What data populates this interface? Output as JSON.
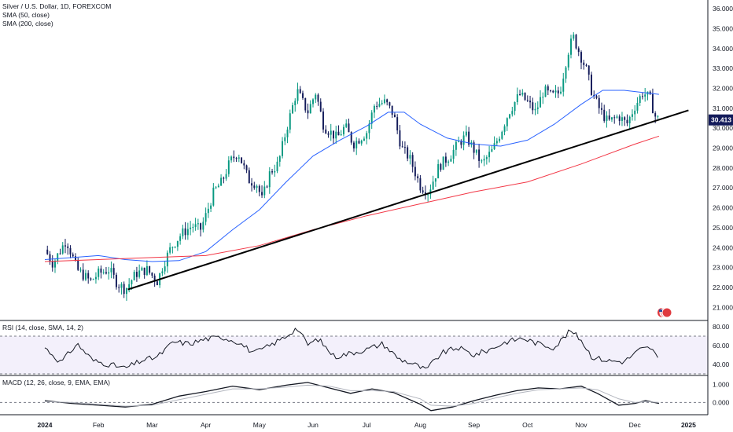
{
  "header": {
    "title": "Silver / U.S. Dollar, 1D, FOREXCOM",
    "sma50_label": "SMA (50, close)",
    "sma200_label": "SMA (200, close)"
  },
  "rsi_panel": {
    "label": "RSI (14, close, SMA, 14, 2)"
  },
  "macd_panel": {
    "label": "MACD (12, 26, close, 9, EMA, EMA)"
  },
  "last_price": "30.413",
  "colors": {
    "up": "#089981",
    "down": "#131b5a",
    "sma50": "#2962ff",
    "sma200": "#f23645",
    "trendline": "#000000",
    "last_price_bg": "#131b5a"
  },
  "icons": [
    "us-flag-icon"
  ],
  "chart_data": [
    {
      "type": "candlestick",
      "title": "Silver / U.S. Dollar, 1D, FOREXCOM",
      "y_ticks": [
        "36.000",
        "35.000",
        "34.000",
        "33.000",
        "32.000",
        "31.000",
        "30.000",
        "29.000",
        "28.000",
        "27.000",
        "26.000",
        "25.000",
        "24.000",
        "23.000",
        "22.000",
        "21.000"
      ],
      "ylim": [
        20.5,
        36.2
      ],
      "x_ticks": [
        "2024",
        "Feb",
        "Mar",
        "Apr",
        "May",
        "Jun",
        "Jul",
        "Aug",
        "Sep",
        "Oct",
        "Nov",
        "Dec",
        "2025"
      ],
      "x_tick_months": [
        0,
        1,
        2,
        3,
        4,
        5,
        6,
        7,
        8,
        9,
        10,
        11,
        12
      ],
      "last_value": 30.413,
      "close_path": [
        [
          0,
          23.9
        ],
        [
          0.15,
          23.2
        ],
        [
          0.4,
          24.4
        ],
        [
          0.6,
          22.9
        ],
        [
          0.85,
          22.3
        ],
        [
          1.0,
          22.7
        ],
        [
          1.2,
          22.9
        ],
        [
          1.35,
          22.2
        ],
        [
          1.5,
          21.9
        ],
        [
          1.7,
          22.7
        ],
        [
          1.9,
          22.9
        ],
        [
          2.1,
          22.3
        ],
        [
          2.2,
          23.1
        ],
        [
          2.35,
          24.0
        ],
        [
          2.55,
          24.7
        ],
        [
          2.75,
          25.1
        ],
        [
          2.9,
          24.9
        ],
        [
          3.0,
          25.6
        ],
        [
          3.15,
          26.8
        ],
        [
          3.3,
          27.3
        ],
        [
          3.45,
          28.3
        ],
        [
          3.6,
          28.8
        ],
        [
          3.8,
          27.4
        ],
        [
          3.95,
          27.2
        ],
        [
          4.05,
          26.4
        ],
        [
          4.2,
          27.8
        ],
        [
          4.35,
          28.2
        ],
        [
          4.5,
          29.9
        ],
        [
          4.7,
          31.9
        ],
        [
          4.9,
          30.8
        ],
        [
          5.05,
          31.8
        ],
        [
          5.2,
          30.1
        ],
        [
          5.45,
          29.5
        ],
        [
          5.6,
          30.1
        ],
        [
          5.75,
          29.2
        ],
        [
          6.0,
          29.8
        ],
        [
          6.15,
          31.2
        ],
        [
          6.35,
          31.3
        ],
        [
          6.5,
          30.7
        ],
        [
          6.65,
          29.0
        ],
        [
          6.8,
          28.5
        ],
        [
          7.0,
          27.1
        ],
        [
          7.15,
          26.8
        ],
        [
          7.35,
          28.1
        ],
        [
          7.55,
          28.6
        ],
        [
          7.7,
          29.2
        ],
        [
          7.85,
          29.6
        ],
        [
          8.0,
          28.9
        ],
        [
          8.15,
          28.2
        ],
        [
          8.35,
          28.9
        ],
        [
          8.5,
          29.8
        ],
        [
          8.65,
          30.8
        ],
        [
          8.85,
          31.7
        ],
        [
          9.0,
          31.3
        ],
        [
          9.15,
          30.8
        ],
        [
          9.3,
          31.9
        ],
        [
          9.45,
          31.6
        ],
        [
          9.6,
          31.8
        ],
        [
          9.75,
          33.8
        ],
        [
          9.85,
          34.6
        ],
        [
          9.95,
          33.9
        ],
        [
          10.1,
          32.9
        ],
        [
          10.2,
          31.8
        ],
        [
          10.35,
          30.9
        ],
        [
          10.5,
          30.3
        ],
        [
          10.7,
          30.6
        ],
        [
          10.85,
          30.2
        ],
        [
          11.0,
          31.1
        ],
        [
          11.15,
          31.8
        ],
        [
          11.28,
          31.5
        ],
        [
          11.38,
          30.6
        ],
        [
          11.45,
          30.413
        ]
      ],
      "series": [
        {
          "name": "SMA (50, close)",
          "color": "#2962ff",
          "points": [
            [
              0,
              23.4
            ],
            [
              1,
              23.6
            ],
            [
              1.5,
              23.4
            ],
            [
              2,
              23.3
            ],
            [
              2.5,
              23.35
            ],
            [
              3,
              23.8
            ],
            [
              3.5,
              24.9
            ],
            [
              4,
              25.9
            ],
            [
              4.5,
              27.3
            ],
            [
              5,
              28.6
            ],
            [
              5.5,
              29.4
            ],
            [
              6,
              30.1
            ],
            [
              6.4,
              30.8
            ],
            [
              6.7,
              30.8
            ],
            [
              7,
              30.2
            ],
            [
              7.5,
              29.5
            ],
            [
              8,
              29.2
            ],
            [
              8.5,
              29.1
            ],
            [
              9,
              29.4
            ],
            [
              9.5,
              30.2
            ],
            [
              10,
              31.2
            ],
            [
              10.4,
              31.9
            ],
            [
              10.8,
              31.9
            ],
            [
              11.45,
              31.7
            ]
          ]
        },
        {
          "name": "SMA (200, close)",
          "color": "#f23645",
          "points": [
            [
              0,
              23.3
            ],
            [
              1,
              23.4
            ],
            [
              2,
              23.5
            ],
            [
              3,
              23.6
            ],
            [
              4,
              24.1
            ],
            [
              5,
              24.9
            ],
            [
              6,
              25.6
            ],
            [
              7,
              26.2
            ],
            [
              8,
              26.8
            ],
            [
              9,
              27.3
            ],
            [
              10,
              28.2
            ],
            [
              11,
              29.2
            ],
            [
              11.45,
              29.6
            ]
          ]
        },
        {
          "name": "trendline",
          "color": "#000000",
          "points": [
            [
              1.55,
              21.9
            ],
            [
              12.0,
              30.9
            ]
          ]
        }
      ]
    },
    {
      "type": "line",
      "title": "RSI (14, close, SMA, 14, 2)",
      "y_ticks": [
        "80.00",
        "60.00",
        "40.00"
      ],
      "ylim": [
        30,
        85
      ],
      "band": [
        30,
        70
      ],
      "points": [
        [
          0,
          58
        ],
        [
          0.3,
          42
        ],
        [
          0.6,
          62
        ],
        [
          0.9,
          44
        ],
        [
          1.2,
          40
        ],
        [
          1.5,
          36
        ],
        [
          1.8,
          44
        ],
        [
          2.1,
          48
        ],
        [
          2.4,
          64
        ],
        [
          2.7,
          62
        ],
        [
          3.0,
          67
        ],
        [
          3.3,
          69
        ],
        [
          3.6,
          64
        ],
        [
          3.9,
          52
        ],
        [
          4.2,
          60
        ],
        [
          4.5,
          70
        ],
        [
          4.7,
          79
        ],
        [
          4.9,
          61
        ],
        [
          5.1,
          67
        ],
        [
          5.4,
          48
        ],
        [
          5.7,
          52
        ],
        [
          6.0,
          56
        ],
        [
          6.3,
          62
        ],
        [
          6.6,
          46
        ],
        [
          6.9,
          40
        ],
        [
          7.1,
          34
        ],
        [
          7.4,
          52
        ],
        [
          7.7,
          58
        ],
        [
          8.0,
          50
        ],
        [
          8.3,
          56
        ],
        [
          8.6,
          64
        ],
        [
          8.9,
          68
        ],
        [
          9.2,
          62
        ],
        [
          9.5,
          58
        ],
        [
          9.8,
          76
        ],
        [
          10.0,
          66
        ],
        [
          10.2,
          48
        ],
        [
          10.5,
          44
        ],
        [
          10.8,
          43
        ],
        [
          11.1,
          56
        ],
        [
          11.3,
          58
        ],
        [
          11.45,
          44
        ]
      ]
    },
    {
      "type": "line",
      "title": "MACD (12, 26, close, 9, EMA, EMA)",
      "y_ticks": [
        "1.000",
        "0.000"
      ],
      "ylim": [
        -0.5,
        1.4
      ],
      "zero": 0,
      "series": [
        {
          "name": "MACD",
          "color": "#131722",
          "points": [
            [
              0,
              0.1
            ],
            [
              0.5,
              -0.05
            ],
            [
              1.0,
              -0.15
            ],
            [
              1.5,
              -0.25
            ],
            [
              2.0,
              -0.1
            ],
            [
              2.5,
              0.35
            ],
            [
              3.0,
              0.6
            ],
            [
              3.5,
              0.9
            ],
            [
              4.0,
              0.7
            ],
            [
              4.5,
              0.95
            ],
            [
              4.9,
              1.1
            ],
            [
              5.3,
              0.8
            ],
            [
              5.7,
              0.5
            ],
            [
              6.1,
              0.75
            ],
            [
              6.5,
              0.55
            ],
            [
              7.0,
              -0.1
            ],
            [
              7.2,
              -0.45
            ],
            [
              7.6,
              -0.25
            ],
            [
              8.0,
              0.1
            ],
            [
              8.4,
              0.4
            ],
            [
              8.8,
              0.65
            ],
            [
              9.2,
              0.8
            ],
            [
              9.6,
              0.75
            ],
            [
              10.0,
              0.9
            ],
            [
              10.3,
              0.5
            ],
            [
              10.7,
              -0.15
            ],
            [
              11.0,
              -0.05
            ],
            [
              11.2,
              0.1
            ],
            [
              11.45,
              -0.05
            ]
          ]
        },
        {
          "name": "Signal",
          "color": "#b2b5be",
          "points": [
            [
              0,
              0.05
            ],
            [
              0.5,
              0.0
            ],
            [
              1.0,
              -0.1
            ],
            [
              1.5,
              -0.2
            ],
            [
              2.0,
              -0.15
            ],
            [
              2.5,
              0.15
            ],
            [
              3.0,
              0.45
            ],
            [
              3.5,
              0.75
            ],
            [
              4.0,
              0.75
            ],
            [
              4.5,
              0.85
            ],
            [
              4.9,
              0.95
            ],
            [
              5.3,
              0.9
            ],
            [
              5.7,
              0.65
            ],
            [
              6.1,
              0.65
            ],
            [
              6.5,
              0.6
            ],
            [
              7.0,
              0.2
            ],
            [
              7.2,
              -0.15
            ],
            [
              7.6,
              -0.2
            ],
            [
              8.0,
              -0.05
            ],
            [
              8.4,
              0.25
            ],
            [
              8.8,
              0.5
            ],
            [
              9.2,
              0.7
            ],
            [
              9.6,
              0.75
            ],
            [
              10.0,
              0.8
            ],
            [
              10.3,
              0.7
            ],
            [
              10.7,
              0.2
            ],
            [
              11.0,
              0.0
            ],
            [
              11.2,
              0.05
            ],
            [
              11.45,
              0.0
            ]
          ]
        }
      ]
    }
  ]
}
